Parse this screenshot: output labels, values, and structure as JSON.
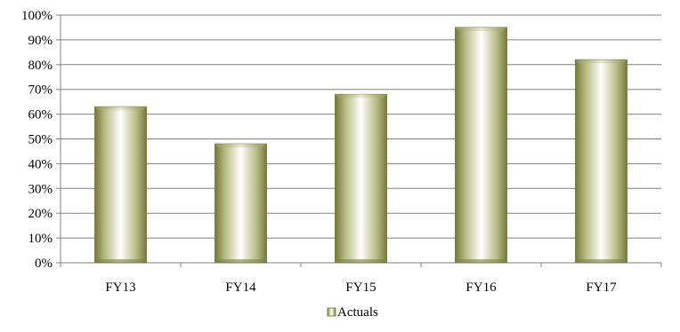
{
  "chart_data": {
    "type": "bar",
    "categories": [
      "FY13",
      "FY14",
      "FY15",
      "FY16",
      "FY17"
    ],
    "series": [
      {
        "name": "Actuals",
        "values": [
          63,
          48,
          68,
          95,
          82
        ]
      }
    ],
    "y_ticks": [
      "0%",
      "10%",
      "20%",
      "30%",
      "40%",
      "50%",
      "60%",
      "70%",
      "80%",
      "90%",
      "100%"
    ],
    "ylim": [
      0,
      100
    ],
    "grid": true,
    "legend": {
      "position": "bottom",
      "entries": [
        "Actuals"
      ]
    },
    "colors": {
      "bar_dark": "#75793a",
      "bar_mid": "#b8bd85",
      "bar_light": "#ffffff",
      "grid": "#808080",
      "axis": "#808080"
    }
  }
}
